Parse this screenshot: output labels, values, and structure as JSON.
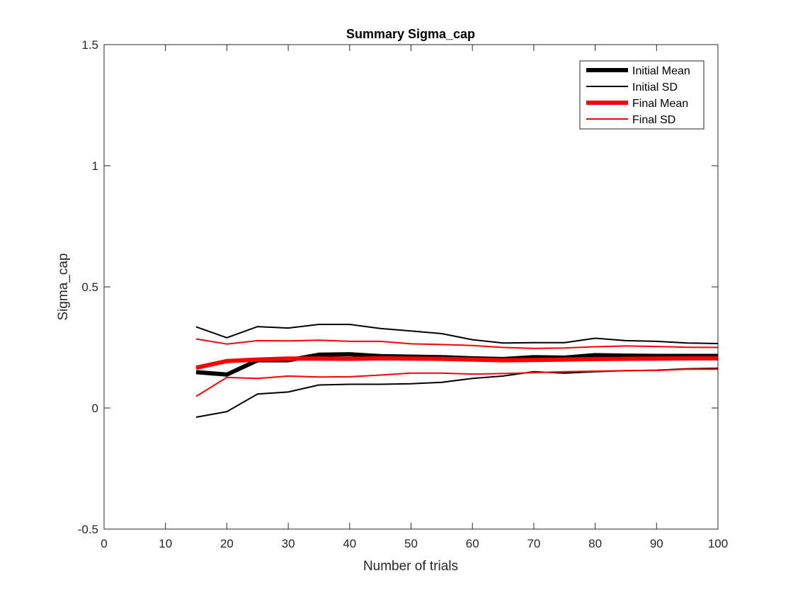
{
  "chart_data": {
    "type": "line",
    "title": "Summary Sigma_cap",
    "xlabel": "Number of trials",
    "ylabel": "Sigma_cap",
    "xlim": [
      0,
      100
    ],
    "ylim": [
      -0.5,
      1.5
    ],
    "xticks": [
      0,
      10,
      20,
      30,
      40,
      50,
      60,
      70,
      80,
      90,
      100
    ],
    "xtick_labels": [
      "0",
      "10",
      "20",
      "30",
      "40",
      "50",
      "60",
      "70",
      "80",
      "90",
      "100"
    ],
    "yticks": [
      -0.5,
      0,
      0.5,
      1,
      1.5
    ],
    "ytick_labels": [
      "-0.5",
      "0",
      "0.5",
      "1",
      "1.5"
    ],
    "grid": false,
    "legend_position": "top-right",
    "x": [
      15,
      20,
      25,
      30,
      35,
      40,
      45,
      50,
      55,
      60,
      65,
      70,
      75,
      80,
      85,
      90,
      95,
      100
    ],
    "series": [
      {
        "name": "Initial Mean",
        "color": "#000000",
        "style": "thick",
        "values": [
          0.148,
          0.138,
          0.197,
          0.197,
          0.22,
          0.222,
          0.214,
          0.212,
          0.21,
          0.205,
          0.202,
          0.21,
          0.208,
          0.218,
          0.216,
          0.215,
          0.215,
          0.215
        ]
      },
      {
        "name": "Initial SD",
        "color": "#000000",
        "style": "thin",
        "values": [
          0.335,
          0.29,
          0.336,
          0.33,
          0.345,
          0.345,
          0.328,
          0.318,
          0.307,
          0.282,
          0.268,
          0.27,
          0.27,
          0.288,
          0.278,
          0.275,
          0.268,
          0.266
        ]
      },
      {
        "name": "Initial SD",
        "color": "#000000",
        "style": "thin",
        "legend": false,
        "values": [
          -0.038,
          -0.015,
          0.058,
          0.066,
          0.095,
          0.098,
          0.098,
          0.1,
          0.106,
          0.122,
          0.132,
          0.15,
          0.144,
          0.15,
          0.154,
          0.156,
          0.162,
          0.164
        ]
      },
      {
        "name": "Final Mean",
        "color": "#ff0000",
        "style": "thick",
        "values": [
          0.166,
          0.194,
          0.2,
          0.204,
          0.204,
          0.203,
          0.205,
          0.204,
          0.203,
          0.2,
          0.197,
          0.198,
          0.2,
          0.202,
          0.203,
          0.204,
          0.205,
          0.205
        ]
      },
      {
        "name": "Final SD",
        "color": "#ff0000",
        "style": "thin",
        "values": [
          0.285,
          0.264,
          0.278,
          0.277,
          0.28,
          0.275,
          0.275,
          0.265,
          0.262,
          0.258,
          0.25,
          0.246,
          0.248,
          0.253,
          0.256,
          0.254,
          0.251,
          0.25
        ]
      },
      {
        "name": "Final SD",
        "color": "#ff0000",
        "style": "thin",
        "legend": false,
        "values": [
          0.048,
          0.126,
          0.122,
          0.132,
          0.128,
          0.129,
          0.136,
          0.144,
          0.144,
          0.14,
          0.142,
          0.146,
          0.15,
          0.152,
          0.154,
          0.155,
          0.16,
          0.16
        ]
      }
    ]
  }
}
